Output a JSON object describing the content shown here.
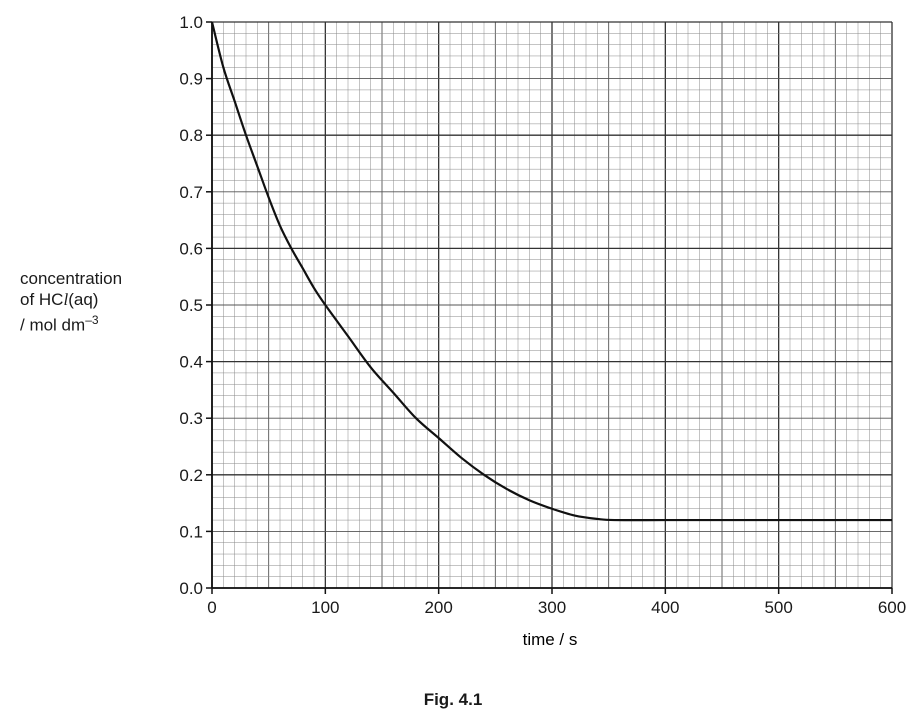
{
  "chart_data": {
    "type": "line",
    "xlabel": "time / s",
    "ylabel_lines": [
      "concentration",
      "of HCl(aq)",
      "/ mol dm–3"
    ],
    "ylabel_parts": {
      "line1": "concentration",
      "line2_pre": "of HC",
      "line2_ell": "l",
      "line2_post": "(aq)",
      "line3_pre": "/ mol dm",
      "line3_sup": "–3"
    },
    "xlim": [
      0,
      600
    ],
    "ylim": [
      0.0,
      1.0
    ],
    "x_ticks": [
      "0",
      "100",
      "200",
      "300",
      "400",
      "500",
      "600"
    ],
    "y_ticks": [
      "0.0",
      "0.1",
      "0.2",
      "0.3",
      "0.4",
      "0.5",
      "0.6",
      "0.7",
      "0.8",
      "0.9",
      "1.0"
    ],
    "grid": true,
    "series": [
      {
        "x": [
          0,
          10,
          20,
          30,
          40,
          50,
          60,
          70,
          80,
          90,
          100,
          120,
          140,
          160,
          180,
          200,
          220,
          240,
          260,
          280,
          300,
          320,
          340,
          355,
          400,
          450,
          500,
          550,
          600
        ],
        "y": [
          1.0,
          0.92,
          0.86,
          0.8,
          0.745,
          0.69,
          0.64,
          0.6,
          0.565,
          0.53,
          0.5,
          0.445,
          0.39,
          0.345,
          0.3,
          0.265,
          0.23,
          0.2,
          0.175,
          0.155,
          0.14,
          0.128,
          0.122,
          0.12,
          0.12,
          0.12,
          0.12,
          0.12,
          0.12
        ]
      }
    ]
  },
  "caption": "Fig. 4.1"
}
